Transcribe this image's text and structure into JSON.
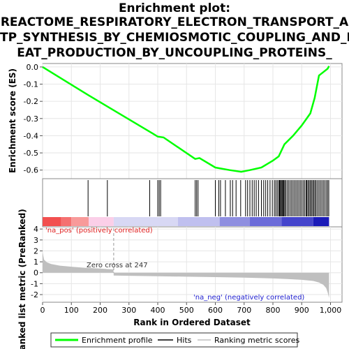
{
  "chart_data": {
    "type": "line",
    "title_lines": [
      "Enrichment plot:",
      "REACTOME_RESPIRATORY_ELECTRON_TRANSPORT_A",
      "TP_SYNTHESIS_BY_CHEMIOSMOTIC_COUPLING_AND_H",
      "EAT_PRODUCTION_BY_UNCOUPLING_PROTEINS_"
    ],
    "es_panel": {
      "ylabel": "Enrichment score (ES)",
      "ylim": [
        -0.65,
        0.02
      ],
      "yticks": [
        0.0,
        -0.1,
        -0.2,
        -0.3,
        -0.4,
        -0.5,
        -0.6
      ],
      "ytick_labels": [
        "0.0",
        "-0.1",
        "-0.2",
        "-0.3",
        "-0.4",
        "-0.5",
        "-0.6"
      ],
      "line_color": "#00ff00",
      "profile": {
        "x": [
          0,
          160,
          230,
          380,
          400,
          420,
          530,
          545,
          600,
          650,
          690,
          720,
          760,
          800,
          820,
          840,
          870,
          900,
          930,
          945,
          960,
          975,
          990,
          995
        ],
        "y": [
          0.0,
          -0.165,
          -0.235,
          -0.385,
          -0.405,
          -0.41,
          -0.535,
          -0.53,
          -0.585,
          -0.6,
          -0.61,
          -0.6,
          -0.585,
          -0.545,
          -0.52,
          -0.45,
          -0.4,
          -0.34,
          -0.27,
          -0.18,
          -0.05,
          -0.03,
          -0.01,
          0.005
        ]
      }
    },
    "hits": [
      158,
      225,
      372,
      400,
      405,
      410,
      530,
      535,
      540,
      600,
      612,
      618,
      635,
      652,
      660,
      672,
      688,
      705,
      712,
      720,
      728,
      735,
      742,
      750,
      760,
      768,
      775,
      782,
      790,
      798,
      805,
      810,
      815,
      820,
      823,
      826,
      829,
      832,
      835,
      838,
      841,
      845,
      850,
      855,
      860,
      865,
      870,
      875,
      880,
      885,
      890,
      895,
      900,
      905,
      910,
      915,
      918,
      922,
      926,
      930,
      934,
      938,
      942,
      946,
      950,
      955,
      960,
      965,
      970,
      975,
      980,
      985,
      990,
      994
    ],
    "gradient_segments": [
      {
        "from": 0,
        "to": 65,
        "color": "#f24f4f"
      },
      {
        "from": 65,
        "to": 100,
        "color": "#f57070"
      },
      {
        "from": 100,
        "to": 160,
        "color": "#f89a9a"
      },
      {
        "from": 160,
        "to": 247,
        "color": "#fbcfe8"
      },
      {
        "from": 247,
        "to": 470,
        "color": "#d8d8f4"
      },
      {
        "from": 470,
        "to": 615,
        "color": "#c0c0ef"
      },
      {
        "from": 615,
        "to": 720,
        "color": "#8f8fe0"
      },
      {
        "from": 720,
        "to": 830,
        "color": "#6b6bd9"
      },
      {
        "from": 830,
        "to": 940,
        "color": "#4444cc"
      },
      {
        "from": 940,
        "to": 995,
        "color": "#1a1ab8"
      }
    ],
    "metric_panel": {
      "ylabel": "Ranked list metric (PreRanked)",
      "ylim": [
        -2.7,
        4.2
      ],
      "yticks": [
        4,
        3,
        2,
        1,
        0,
        -1,
        -2
      ],
      "ytick_labels": [
        "4",
        "3",
        "2",
        "1",
        "0",
        "-1",
        "-2"
      ],
      "metric": {
        "x": [
          0,
          5,
          15,
          30,
          60,
          100,
          150,
          200,
          246,
          247,
          300,
          400,
          500,
          600,
          700,
          800,
          850,
          900,
          940,
          960,
          975,
          985,
          990,
          995
        ],
        "y": [
          1.9,
          1.2,
          0.95,
          0.8,
          0.65,
          0.55,
          0.45,
          0.38,
          0.3,
          -0.25,
          -0.28,
          -0.32,
          -0.36,
          -0.4,
          -0.45,
          -0.52,
          -0.58,
          -0.65,
          -0.75,
          -0.9,
          -1.1,
          -1.4,
          -1.8,
          -2.3
        ]
      },
      "zero_cross_label": "Zero cross at 247",
      "zero_cross_x": 247,
      "pos_label": "'na_pos' (positively correlated)",
      "neg_label": "'na_neg' (negatively correlated)"
    },
    "xlabel": "Rank in Ordered Dataset",
    "xlim": [
      0,
      1040
    ],
    "xticks": [
      0,
      100,
      200,
      300,
      400,
      500,
      600,
      700,
      800,
      900,
      1000
    ],
    "xtick_labels": [
      "0",
      "100",
      "200",
      "300",
      "400",
      "500",
      "600",
      "700",
      "800",
      "900",
      "1,000"
    ],
    "legend": {
      "placement": "bottom",
      "entries": [
        {
          "label": "Enrichment profile",
          "color": "#00ff00",
          "style": "thick-line"
        },
        {
          "label": "Hits",
          "color": "#000000",
          "style": "line"
        },
        {
          "label": "Ranking metric scores",
          "color": "#bfbfbf",
          "style": "line"
        }
      ]
    }
  }
}
